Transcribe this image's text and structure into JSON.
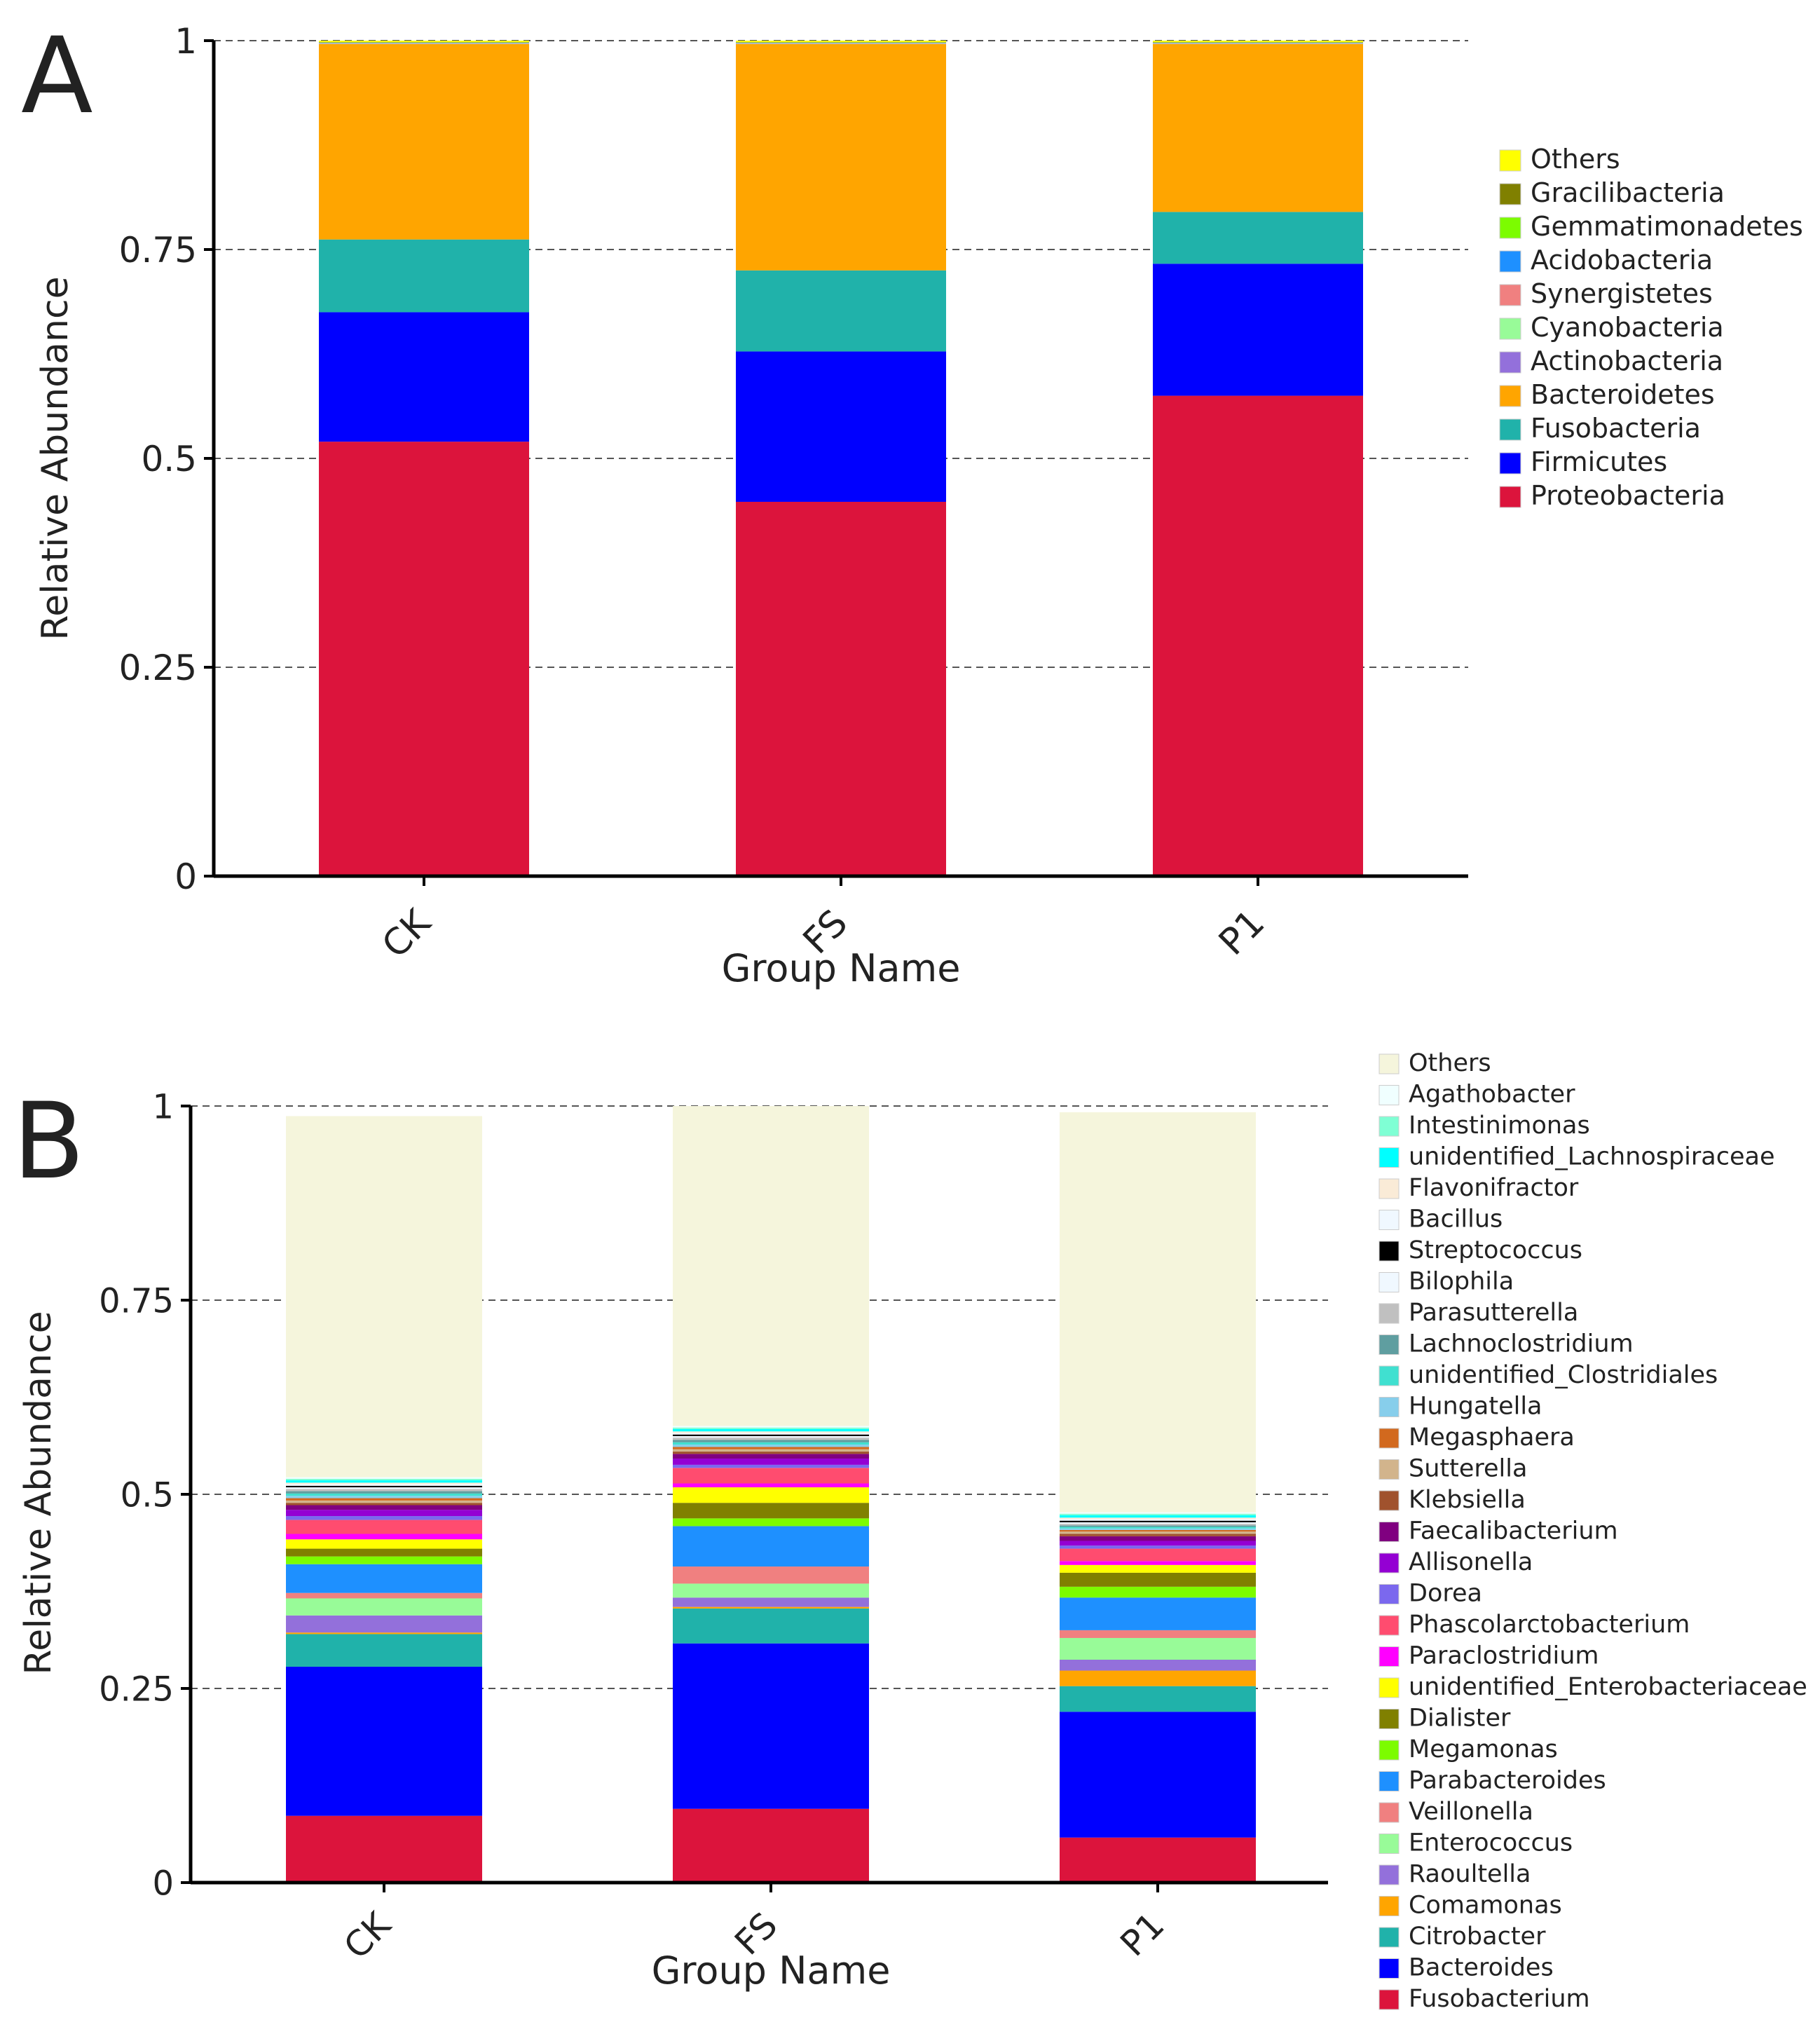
{
  "chart_data": [
    {
      "panel_label": "A",
      "type": "bar",
      "stacked": true,
      "title": "",
      "xlabel": "Group Name",
      "ylabel": "Relative Abundance",
      "ylim": [
        0,
        1
      ],
      "yticks": [
        "0",
        "0.25",
        "0.5",
        "0.75",
        "1"
      ],
      "grid": true,
      "legend_position": "right",
      "categories": [
        "CK",
        "FS",
        "P1"
      ],
      "series": [
        {
          "name": "Proteobacteria",
          "color": "#DC143C",
          "values": [
            0.52,
            0.448,
            0.575
          ]
        },
        {
          "name": "Firmicutes",
          "color": "#0000FF",
          "values": [
            0.155,
            0.18,
            0.158
          ]
        },
        {
          "name": "Fusobacteria",
          "color": "#20B2AA",
          "values": [
            0.087,
            0.097,
            0.062
          ]
        },
        {
          "name": "Bacteroidetes",
          "color": "#FFA500",
          "values": [
            0.234,
            0.271,
            0.201
          ]
        },
        {
          "name": "Actinobacteria",
          "color": "#9370DB",
          "values": [
            0.0004,
            0.0004,
            0.0004
          ]
        },
        {
          "name": "Cyanobacteria",
          "color": "#98FB98",
          "values": [
            0.0004,
            0.0004,
            0.0004
          ]
        },
        {
          "name": "Synergistetes",
          "color": "#F08080",
          "values": [
            0.0004,
            0.0004,
            0.0004
          ]
        },
        {
          "name": "Acidobacteria",
          "color": "#1E90FF",
          "values": [
            0.0004,
            0.0004,
            0.0004
          ]
        },
        {
          "name": "Gemmatimonadetes",
          "color": "#7CFC00",
          "values": [
            0.0004,
            0.0004,
            0.0004
          ]
        },
        {
          "name": "Gracilibacteria",
          "color": "#808000",
          "values": [
            0.0004,
            0.0004,
            0.0004
          ]
        },
        {
          "name": "Others",
          "color": "#FFFF00",
          "values": [
            0.0016,
            0.0016,
            0.0016
          ]
        }
      ]
    },
    {
      "panel_label": "B",
      "type": "bar",
      "stacked": true,
      "title": "",
      "xlabel": "Group Name",
      "ylabel": "Relative Abundance",
      "ylim": [
        0,
        1
      ],
      "yticks": [
        "0",
        "0.25",
        "0.5",
        "0.75",
        "1"
      ],
      "grid": true,
      "legend_position": "right",
      "categories": [
        "CK",
        "FS",
        "P1"
      ],
      "series": [
        {
          "name": "Fusobacterium",
          "color": "#DC143C",
          "values": [
            0.086,
            0.095,
            0.058
          ]
        },
        {
          "name": "Bacteroides",
          "color": "#0000FF",
          "values": [
            0.192,
            0.213,
            0.162
          ]
        },
        {
          "name": "Citrobacter",
          "color": "#20B2AA",
          "values": [
            0.042,
            0.045,
            0.033
          ]
        },
        {
          "name": "Comamonas",
          "color": "#FFA500",
          "values": [
            0.002,
            0.002,
            0.02
          ]
        },
        {
          "name": "Raoultella",
          "color": "#9370DB",
          "values": [
            0.022,
            0.012,
            0.014
          ]
        },
        {
          "name": "Enterococcus",
          "color": "#98FB98",
          "values": [
            0.022,
            0.018,
            0.028
          ]
        },
        {
          "name": "Veillonella",
          "color": "#F08080",
          "values": [
            0.007,
            0.022,
            0.01
          ]
        },
        {
          "name": "Parabacteroides",
          "color": "#1E90FF",
          "values": [
            0.037,
            0.052,
            0.042
          ]
        },
        {
          "name": "Megamonas",
          "color": "#7CFC00",
          "values": [
            0.01,
            0.01,
            0.014
          ]
        },
        {
          "name": "Dialister",
          "color": "#808000",
          "values": [
            0.01,
            0.02,
            0.018
          ]
        },
        {
          "name": "unidentified_Enterobacteriaceae",
          "color": "#FFFF00",
          "values": [
            0.012,
            0.02,
            0.01
          ]
        },
        {
          "name": "Paraclostridium",
          "color": "#FF00FF",
          "values": [
            0.007,
            0.005,
            0.005
          ]
        },
        {
          "name": "Phascolarctobacterium",
          "color": "#FF4C6F",
          "values": [
            0.018,
            0.02,
            0.016
          ]
        },
        {
          "name": "Dorea",
          "color": "#7B68EE",
          "values": [
            0.005,
            0.004,
            0.004
          ]
        },
        {
          "name": "Allisonella",
          "color": "#9400D3",
          "values": [
            0.008,
            0.008,
            0.006
          ]
        },
        {
          "name": "Faecalibacterium",
          "color": "#800080",
          "values": [
            0.006,
            0.006,
            0.006
          ]
        },
        {
          "name": "Klebsiella",
          "color": "#A0522D",
          "values": [
            0.003,
            0.003,
            0.003
          ]
        },
        {
          "name": "Sutterella",
          "color": "#D2B48C",
          "values": [
            0.003,
            0.003,
            0.003
          ]
        },
        {
          "name": "Megasphaera",
          "color": "#D2691E",
          "values": [
            0.003,
            0.003,
            0.002
          ]
        },
        {
          "name": "Hungatella",
          "color": "#87CEEB",
          "values": [
            0.003,
            0.003,
            0.002
          ]
        },
        {
          "name": "unidentified_Clostridiales",
          "color": "#40E0D0",
          "values": [
            0.003,
            0.003,
            0.002
          ]
        },
        {
          "name": "Lachnoclostridium",
          "color": "#5F9EA0",
          "values": [
            0.003,
            0.003,
            0.002
          ]
        },
        {
          "name": "Parasutterella",
          "color": "#C0C0C0",
          "values": [
            0.003,
            0.003,
            0.002
          ]
        },
        {
          "name": "Bilophila",
          "color": "#F0F8FF",
          "values": [
            0.002,
            0.002,
            0.002
          ]
        },
        {
          "name": "Streptococcus",
          "color": "#000000",
          "values": [
            0.002,
            0.002,
            0.002
          ]
        },
        {
          "name": "Bacillus",
          "color": "#F0F8FF",
          "values": [
            0.002,
            0.002,
            0.002
          ]
        },
        {
          "name": "Flavonifractor",
          "color": "#FAEBD7",
          "values": [
            0.002,
            0.002,
            0.002
          ]
        },
        {
          "name": "unidentified_Lachnospiraceae",
          "color": "#00FFFF",
          "values": [
            0.003,
            0.003,
            0.003
          ]
        },
        {
          "name": "Intestinimonas",
          "color": "#7FFFD4",
          "values": [
            0.002,
            0.002,
            0.002
          ]
        },
        {
          "name": "Agathobacter",
          "color": "#F0FFFF",
          "values": [
            0.002,
            0.002,
            0.002
          ]
        },
        {
          "name": "Others",
          "color": "#F5F5DC",
          "values": [
            0.465,
            0.413,
            0.515
          ]
        }
      ]
    }
  ]
}
